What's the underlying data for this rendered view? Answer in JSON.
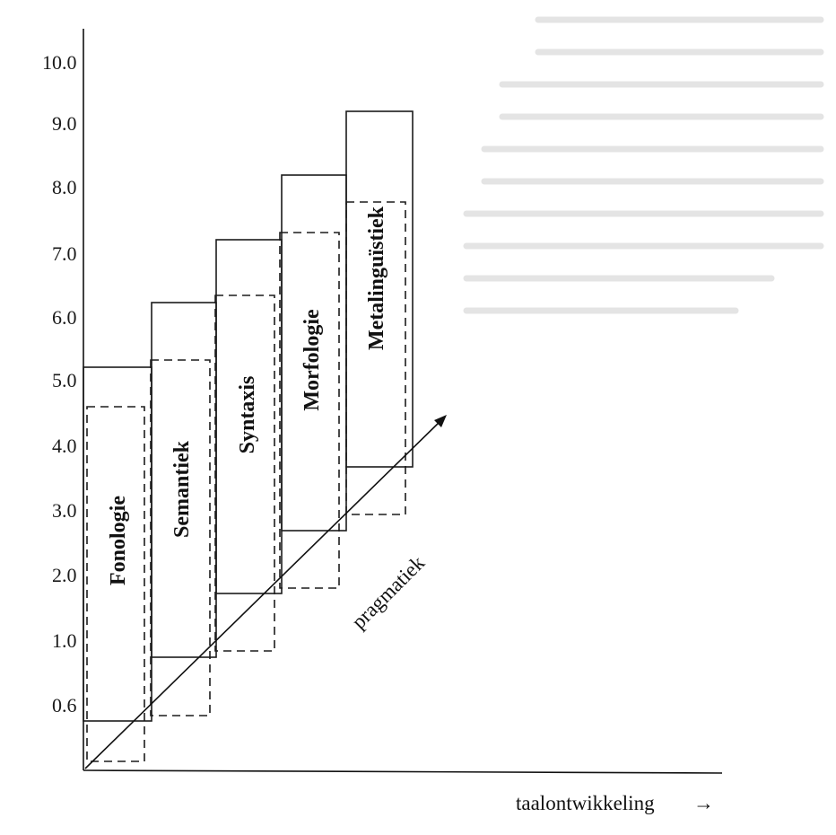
{
  "y_axis": {
    "ticks": [
      "10.0",
      "9.0",
      "8.0",
      "7.0",
      "6.0",
      "5.0",
      "4.0",
      "3.0",
      "2.0",
      "1.0",
      "0.6"
    ]
  },
  "x_axis": {
    "label": "taalontwikkeling",
    "arrow": "→"
  },
  "diagonal_label": "pragmatiek",
  "components": [
    {
      "label": "Fonologie",
      "start_age": "0.6",
      "end_age": "5.0"
    },
    {
      "label": "Semantiek",
      "start_age": "1.0",
      "end_age": "6.0"
    },
    {
      "label": "Syntaxis",
      "start_age": "2.0",
      "end_age": "7.0"
    },
    {
      "label": "Morfologie",
      "start_age": "3.0",
      "end_age": "8.0"
    },
    {
      "label": "Metalinguïstiek",
      "start_age": "4.0",
      "end_age": "9.0"
    }
  ]
}
